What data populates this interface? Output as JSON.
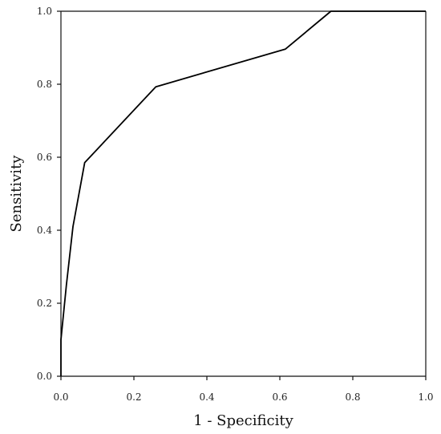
{
  "chart_data": {
    "type": "line",
    "title": "",
    "xlabel": "1 - Specificity",
    "ylabel": "Sensitivity",
    "xlim": [
      0,
      1
    ],
    "ylim": [
      0,
      1
    ],
    "grid": false,
    "x_ticks": [
      "0.0",
      "0.2",
      "0.4",
      "0.6",
      "0.8",
      "1.0"
    ],
    "y_ticks": [
      "0.0",
      "0.2",
      "0.4",
      "0.6",
      "0.8",
      "1.0"
    ],
    "series": [
      {
        "x": [
          0.0,
          0.0,
          0.015,
          0.033,
          0.065,
          0.26,
          0.615,
          0.74,
          0.745,
          1.0
        ],
        "y": [
          0.0,
          0.1,
          0.25,
          0.41,
          0.585,
          0.793,
          0.896,
          1.0,
          1.0,
          1.0
        ]
      }
    ]
  }
}
